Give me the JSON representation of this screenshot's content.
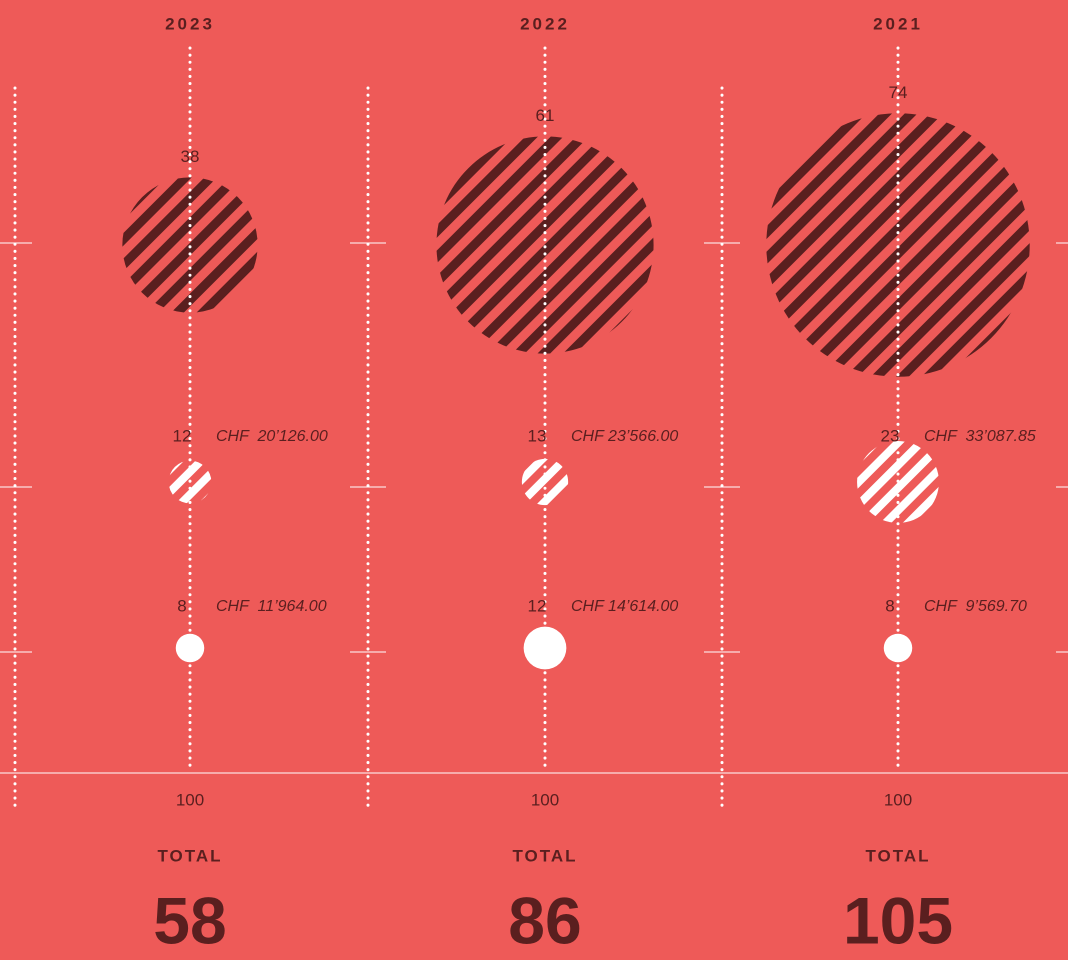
{
  "chart_data": {
    "type": "bubble",
    "categories": [
      "2023",
      "2022",
      "2021"
    ],
    "series": [
      {
        "values": [
          38,
          61,
          74
        ]
      },
      {
        "values": [
          12,
          13,
          23
        ],
        "amounts": [
          "CHF  20’126.00",
          "CHF 23’566.00",
          "CHF  33’087.85"
        ]
      },
      {
        "values": [
          8,
          12,
          8
        ],
        "amounts": [
          "CHF  11’964.00",
          "CHF 14’614.00",
          "CHF  9’569.70"
        ]
      }
    ],
    "bottom_values": [
      100,
      100,
      100
    ],
    "total_label": "TOTAL",
    "totals": [
      58,
      86,
      105
    ]
  }
}
